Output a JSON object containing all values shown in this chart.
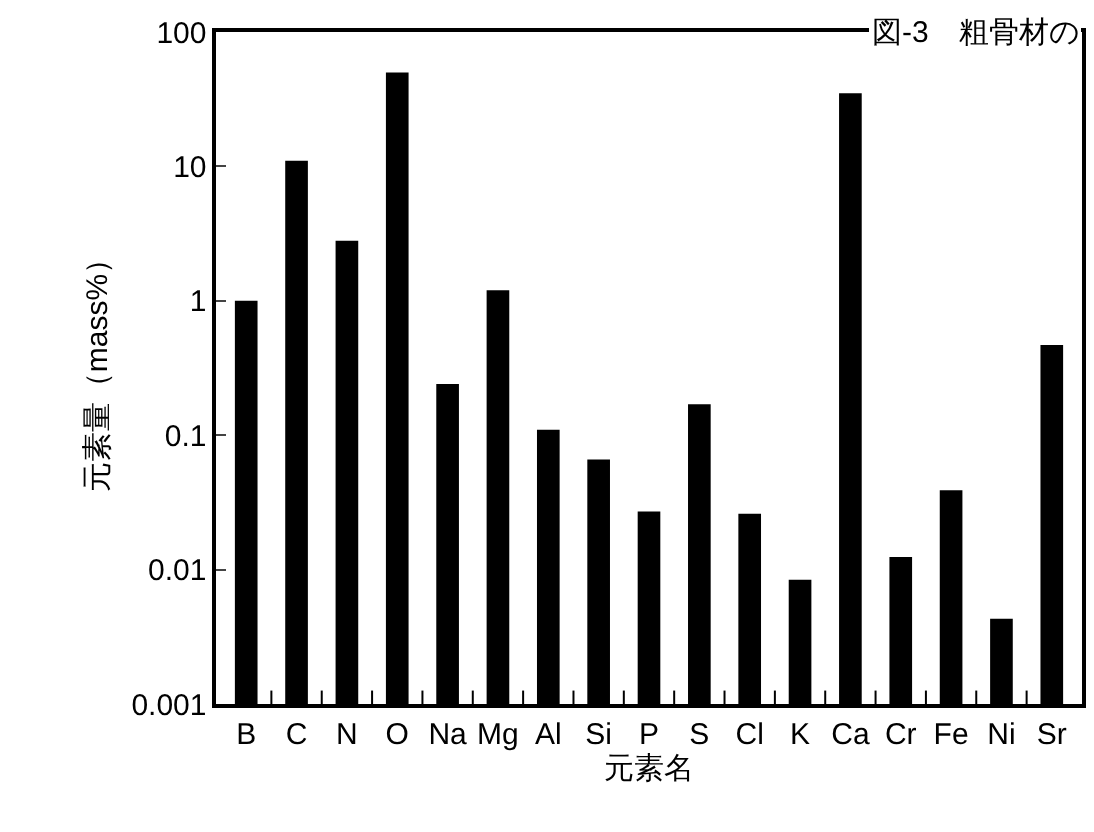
{
  "chart_data": {
    "type": "bar",
    "title": "図-3　粗骨材の",
    "xlabel": "元素名",
    "ylabel": "元素量（mass%）",
    "categories": [
      "B",
      "C",
      "N",
      "O",
      "Na",
      "Mg",
      "Al",
      "Si",
      "P",
      "S",
      "Cl",
      "K",
      "Ca",
      "Cr",
      "Fe",
      "Ni",
      "Sr"
    ],
    "values": [
      1.0,
      11,
      2.8,
      50,
      0.24,
      1.2,
      0.11,
      0.066,
      0.027,
      0.17,
      0.026,
      0.0084,
      35,
      0.0124,
      0.039,
      0.0043,
      0.47
    ],
    "color": "#000000",
    "log": true,
    "ylim": [
      0.001,
      100
    ],
    "yticks": [
      0.001,
      0.01,
      0.1,
      1,
      10,
      100
    ]
  }
}
